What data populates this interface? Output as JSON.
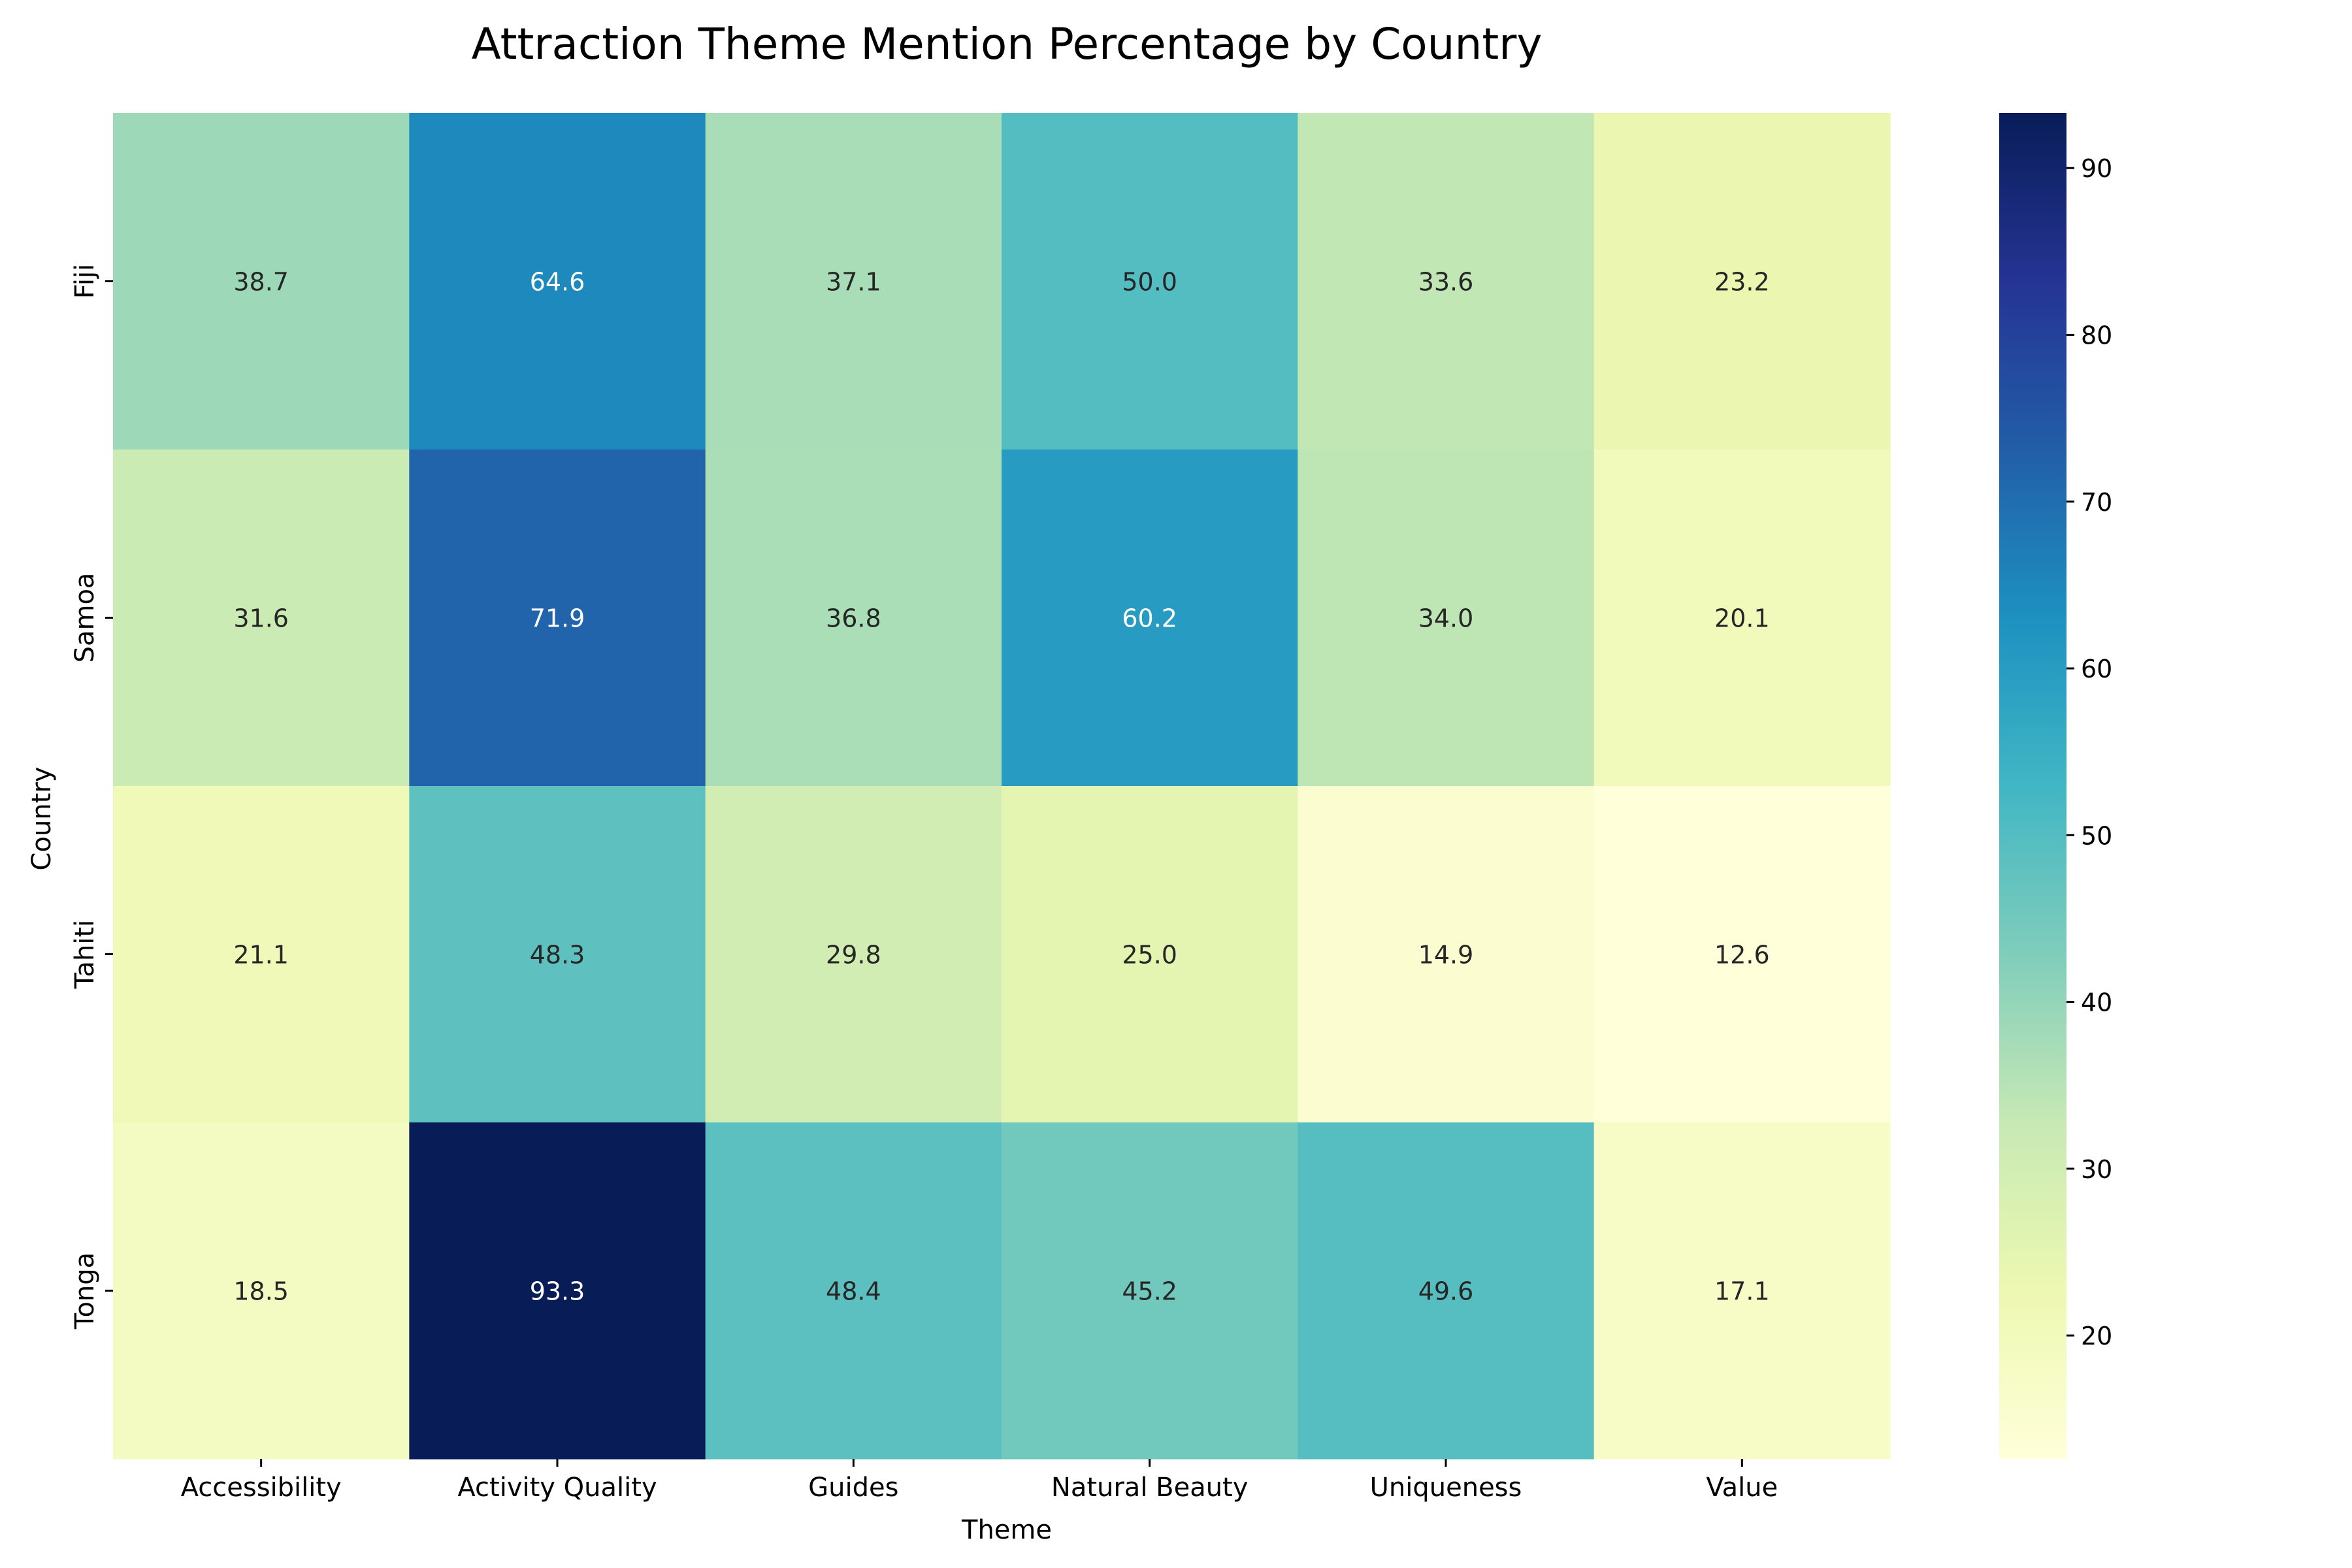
{
  "chart_data": {
    "type": "heatmap",
    "title": "Attraction Theme Mention Percentage by Country",
    "xlabel": "Theme",
    "ylabel": "Country",
    "x_categories": [
      "Accessibility",
      "Activity Quality",
      "Guides",
      "Natural Beauty",
      "Uniqueness",
      "Value"
    ],
    "y_categories": [
      "Fiji",
      "Samoa",
      "Tahiti",
      "Tonga"
    ],
    "values": [
      [
        38.7,
        64.6,
        37.1,
        50.0,
        33.6,
        23.2
      ],
      [
        31.6,
        71.9,
        36.8,
        60.2,
        34.0,
        20.1
      ],
      [
        21.1,
        48.3,
        29.8,
        25.0,
        14.9,
        12.6
      ],
      [
        18.5,
        93.3,
        48.4,
        45.2,
        49.6,
        17.1
      ]
    ],
    "value_labels": [
      [
        "38.7",
        "64.6",
        "37.1",
        "50.0",
        "33.6",
        "23.2"
      ],
      [
        "31.6",
        "71.9",
        "36.8",
        "60.2",
        "34.0",
        "20.1"
      ],
      [
        "21.1",
        "48.3",
        "29.8",
        "25.0",
        "14.9",
        "12.6"
      ],
      [
        "18.5",
        "93.3",
        "48.4",
        "45.2",
        "49.6",
        "17.1"
      ]
    ],
    "colormap": "YlGnBu",
    "vmin": 12.6,
    "vmax": 93.3,
    "colorbar_ticks": [
      "20",
      "30",
      "40",
      "50",
      "60",
      "70",
      "80",
      "90"
    ],
    "grid": false,
    "legend": "colorbar-right"
  }
}
